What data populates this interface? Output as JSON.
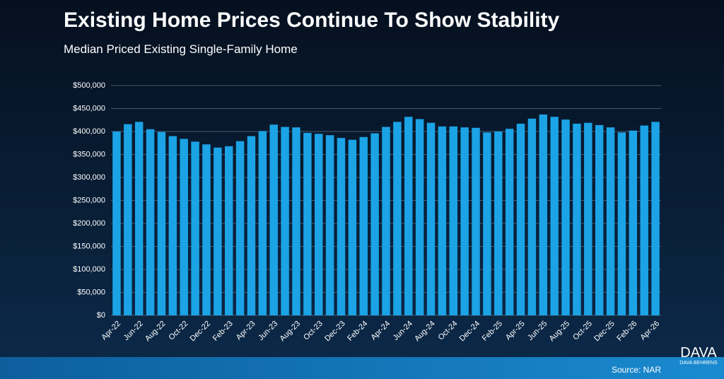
{
  "chart_data": {
    "type": "bar",
    "title": "Existing Home Prices Continue To Show Stability",
    "subtitle": "Median Priced Existing Single-Family Home",
    "source": "Source: NAR",
    "logo": "DAVA",
    "logo_subtitle": "DAVA BEHRENS",
    "color": "#1ba3e6",
    "grid": true,
    "categories": [
      "Apr-22",
      null,
      "Jun-22",
      null,
      "Aug-22",
      null,
      "Oct-22",
      null,
      "Dec-22",
      null,
      "Feb-23",
      null,
      "Apr-23",
      null,
      "Jun-23",
      null,
      "Aug-23",
      null,
      "Oct-23",
      null,
      "Dec-23",
      null,
      "Feb-24",
      null,
      "Apr-24",
      null,
      "Jun-24",
      null,
      "Aug-24",
      null,
      "Oct-24",
      null,
      "Dec-24",
      null,
      "Feb-25",
      null,
      "Apr-25",
      null,
      "Jun-25",
      null,
      "Aug-25",
      null,
      "Oct-25",
      null,
      "Dec-25",
      null,
      "Feb-26",
      null,
      "Apr-26"
    ],
    "values": [
      400000,
      416000,
      421000,
      405000,
      399000,
      390000,
      384000,
      378000,
      372000,
      365000,
      368000,
      379000,
      390000,
      401000,
      415000,
      410000,
      409000,
      397000,
      395000,
      392000,
      386000,
      382000,
      388000,
      396000,
      410000,
      421000,
      432000,
      427000,
      419000,
      411000,
      411000,
      409000,
      408000,
      398000,
      400000,
      406000,
      417000,
      428000,
      437000,
      432000,
      426000,
      417000,
      419000,
      414000,
      409000,
      398000,
      402000,
      413000,
      421000
    ],
    "ylim": [
      0,
      500000
    ],
    "yticks": [
      {
        "value": 0,
        "label": "$0"
      },
      {
        "value": 50000,
        "label": "$50,000"
      },
      {
        "value": 100000,
        "label": "$100,000"
      },
      {
        "value": 150000,
        "label": "$150,000"
      },
      {
        "value": 200000,
        "label": "$200,000"
      },
      {
        "value": 250000,
        "label": "$250,000"
      },
      {
        "value": 300000,
        "label": "$300,000"
      },
      {
        "value": 350000,
        "label": "$350,000"
      },
      {
        "value": 400000,
        "label": "$400,000"
      },
      {
        "value": 450000,
        "label": "$450,000"
      },
      {
        "value": 500000,
        "label": "$500,000"
      }
    ]
  }
}
